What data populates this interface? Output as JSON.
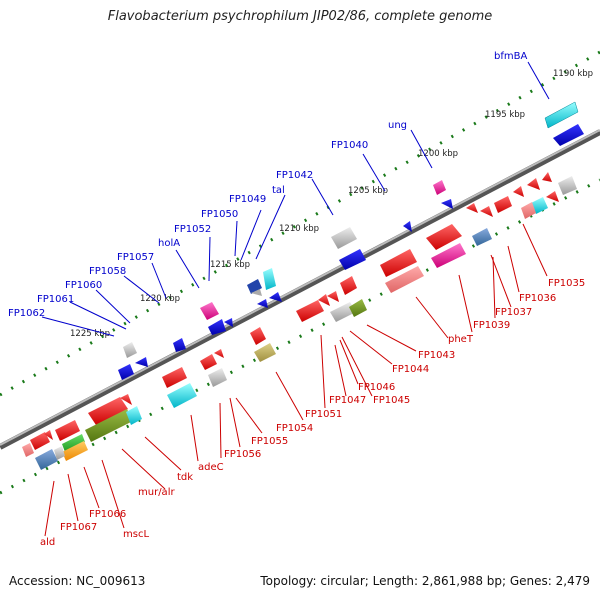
{
  "title": "Flavobacterium psychrophilum JIP02/86, complete genome",
  "footer": {
    "accession": "Accession: NC_009613",
    "summary": "Topology: circular; Length: 2,861,988 bp; Genes: 2,479"
  },
  "ticks": [
    "1190 kbp",
    "1195 kbp",
    "1200 kbp",
    "1205 kbp",
    "1210 kbp",
    "1215 kbp",
    "1220 kbp",
    "1225 kbp"
  ],
  "colors": {
    "forward_label": "#0000cc",
    "reverse_label": "#cc0000",
    "backbone": "#777777",
    "tick_marks": "#1a7a1a"
  },
  "upper_genes": [
    "bfmBA",
    "ung",
    "FP1040",
    "FP1042",
    "tal",
    "FP1049",
    "FP1050",
    "FP1052",
    "holA",
    "FP1057",
    "FP1058",
    "FP1060",
    "FP1061",
    "FP1062"
  ],
  "lower_genes": [
    "FP1035",
    "FP1036",
    "FP1037",
    "FP1039",
    "pheT",
    "FP1043",
    "FP1044",
    "FP1045",
    "FP1046",
    "FP1047",
    "FP1051",
    "FP1054",
    "FP1055",
    "FP1056",
    "adeC",
    "tdk",
    "mur/alr",
    "mscL",
    "FP1066",
    "FP1067",
    "ald"
  ]
}
